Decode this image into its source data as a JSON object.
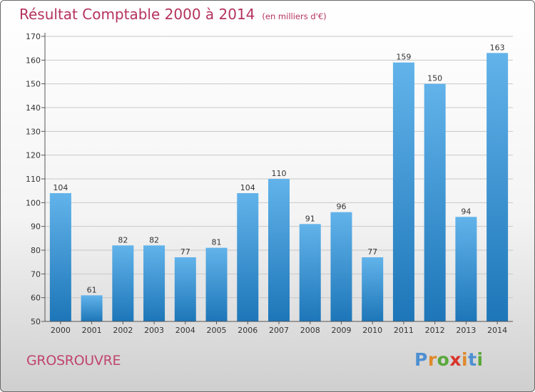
{
  "chart_data": {
    "type": "bar",
    "title": "Résultat Comptable 2000 à 2014",
    "subtitle": "(en milliers d'€)",
    "categories": [
      "2000",
      "2001",
      "2002",
      "2003",
      "2004",
      "2005",
      "2006",
      "2007",
      "2008",
      "2009",
      "2010",
      "2011",
      "2012",
      "2013",
      "2014"
    ],
    "values": [
      104,
      61,
      82,
      82,
      77,
      81,
      104,
      110,
      91,
      96,
      77,
      159,
      150,
      94,
      163
    ],
    "ylim": [
      50,
      170
    ],
    "yticks": [
      50,
      60,
      70,
      80,
      90,
      100,
      110,
      120,
      130,
      140,
      150,
      160,
      170
    ],
    "grid": true,
    "xlabel": "",
    "ylabel": ""
  },
  "footer": {
    "commune": "GROSROUVRE",
    "logo_letters": [
      "P",
      "r",
      "o",
      "x",
      "i",
      "t",
      "i"
    ]
  },
  "colors": {
    "title": "#b5325c",
    "commune": "#c0456c",
    "bar_light": "#62b3ea",
    "bar_dark": "#1d76b8",
    "logo": [
      "#4d8fd1",
      "#e0892b",
      "#5aa83a",
      "#d9342b",
      "#e0892b",
      "#4d8fd1",
      "#5aa83a"
    ]
  }
}
